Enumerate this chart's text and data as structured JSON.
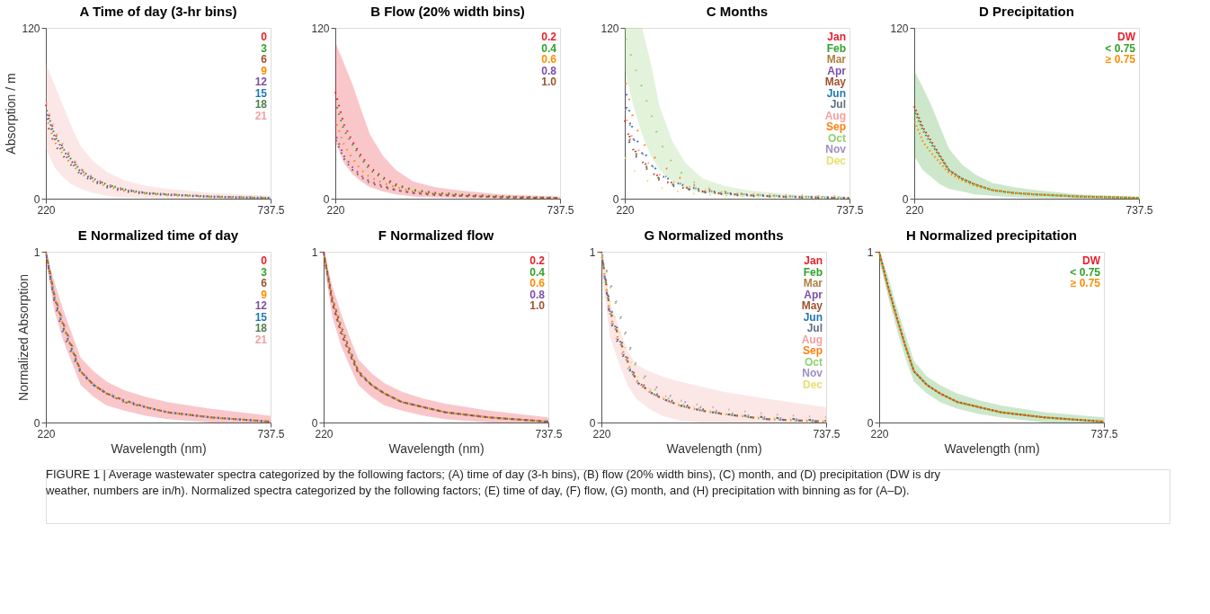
{
  "chart_data": [
    {
      "type": "line",
      "title": "A   Time of day (3-hr bins)",
      "ylabel": "Absorption / m",
      "x": [
        220,
        240,
        260,
        280,
        300,
        330,
        360,
        400,
        450,
        500,
        600,
        737.5
      ],
      "xlim": [
        220,
        737.5
      ],
      "xticks": [
        220,
        737.5
      ],
      "ylim": [
        0,
        120
      ],
      "yticks": [
        0,
        120
      ],
      "grid": false,
      "line_style": "dotted",
      "annotations": [
        "FIGURE 1 | Average wastewater spectra categorized by the following factors; (A) time of day (3-h bins), (B) flow (20% width bins), (C) month, and (D) precipitation (DW is dry weather, numbers are in/h). Normalized spectra categorized by the following factors; (E) time of day, (F) flow, (G) month, and (H) precipitation with binning as for (A–D)."
      ],
      "series": [
        {
          "name": "0",
          "color": "#e8202a",
          "values": [
            66,
            46,
            36,
            28,
            21,
            14,
            10,
            6.5,
            4,
            3,
            1.5,
            0.5
          ]
        },
        {
          "name": "3",
          "color": "#33a02c",
          "values": [
            63,
            44,
            35,
            27,
            20,
            14,
            10,
            6.5,
            4,
            3,
            1.5,
            0.5
          ]
        },
        {
          "name": "6",
          "color": "#a0522d",
          "values": [
            55,
            38,
            30,
            23,
            17,
            12,
            8,
            5,
            3.5,
            2.5,
            1.2,
            0.4
          ]
        },
        {
          "name": "9",
          "color": "#ff8c00",
          "values": [
            58,
            40,
            31,
            24,
            18,
            12,
            8.5,
            5.5,
            3.5,
            2.5,
            1.2,
            0.4
          ]
        },
        {
          "name": "12",
          "color": "#7b4fa6",
          "values": [
            60,
            42,
            32,
            25,
            18,
            13,
            9,
            6,
            4,
            3,
            1.5,
            0.5
          ]
        },
        {
          "name": "15",
          "color": "#1f78b4",
          "values": [
            62,
            44,
            34,
            26,
            19,
            13,
            9,
            6,
            4,
            3,
            1.5,
            0.5
          ]
        },
        {
          "name": "18",
          "color": "#4f7f4f",
          "values": [
            64,
            45,
            35,
            27,
            20,
            14,
            10,
            6.5,
            4,
            3,
            1.5,
            0.5
          ]
        },
        {
          "name": "21",
          "color": "#f4a0a0",
          "values": [
            68,
            48,
            38,
            29,
            21,
            15,
            10,
            7,
            4.5,
            3,
            1.5,
            0.5
          ],
          "lower": [
            35,
            22,
            15,
            10,
            7,
            4,
            2,
            1,
            0.5,
            0.3,
            0,
            0
          ],
          "upper": [
            95,
            80,
            65,
            50,
            37,
            26,
            19,
            13,
            9,
            7,
            4,
            2
          ]
        }
      ]
    },
    {
      "type": "line",
      "title": "B   Flow (20% width bins)",
      "x": [
        220,
        240,
        260,
        280,
        300,
        330,
        360,
        400,
        450,
        500,
        600,
        737.5
      ],
      "xlim": [
        220,
        737.5
      ],
      "xticks": [
        220,
        737.5
      ],
      "ylim": [
        0,
        120
      ],
      "yticks": [
        0,
        120
      ],
      "grid": false,
      "line_style": "dotted",
      "series": [
        {
          "name": "0.2",
          "color": "#e8202a",
          "values": [
            75,
            52,
            40,
            30,
            22,
            15,
            10,
            6,
            4,
            3,
            1.5,
            0.5
          ],
          "lower": [
            40,
            25,
            17,
            12,
            8,
            5,
            3,
            1.5,
            1,
            0.5,
            0,
            0
          ],
          "upper": [
            110,
            95,
            80,
            62,
            45,
            30,
            20,
            12,
            8,
            6,
            3,
            1.5
          ]
        },
        {
          "name": "0.4",
          "color": "#33a02c",
          "values": [
            68,
            48,
            38,
            28,
            20,
            14,
            9,
            6,
            4,
            3,
            1.5,
            0.5
          ]
        },
        {
          "name": "0.6",
          "color": "#ff8c00",
          "values": [
            55,
            38,
            28,
            20,
            15,
            11,
            8,
            5,
            3.5,
            2.5,
            1.2,
            0.4
          ]
        },
        {
          "name": "0.8",
          "color": "#7b4fa6",
          "values": [
            45,
            30,
            22,
            16,
            12,
            9,
            6,
            4,
            3,
            2,
            1,
            0.3
          ]
        },
        {
          "name": "1.0",
          "color": "#a0522d",
          "values": [
            42,
            28,
            20,
            15,
            11,
            8,
            6,
            4,
            2.5,
            2,
            1,
            0.3
          ]
        }
      ]
    },
    {
      "type": "line",
      "title": "C   Months",
      "x": [
        220,
        240,
        260,
        280,
        300,
        330,
        360,
        400,
        450,
        500,
        600,
        737.5
      ],
      "xlim": [
        220,
        737.5
      ],
      "xticks": [
        220,
        737.5
      ],
      "ylim": [
        0,
        120
      ],
      "yticks": [
        0,
        120
      ],
      "grid": false,
      "line_style": "dotted",
      "series": [
        {
          "name": "Jan",
          "color": "#e8202a",
          "values": [
            55,
            35,
            27,
            20,
            15,
            11,
            8,
            5,
            3.5,
            2.5,
            1.2,
            0.4
          ]
        },
        {
          "name": "Feb",
          "color": "#33a02c",
          "values": [
            52,
            34,
            26,
            19,
            14,
            10,
            7,
            5,
            3.5,
            2.5,
            1.2,
            0.4
          ]
        },
        {
          "name": "Mar",
          "color": "#b08040",
          "values": [
            50,
            33,
            25,
            19,
            14,
            10,
            7,
            5,
            3.5,
            2.5,
            1.2,
            0.4
          ]
        },
        {
          "name": "Apr",
          "color": "#7b4fa6",
          "values": [
            48,
            32,
            24,
            18,
            13,
            9,
            7,
            4.5,
            3,
            2,
            1,
            0.3
          ]
        },
        {
          "name": "May",
          "color": "#a0522d",
          "values": [
            53,
            34,
            26,
            19,
            14,
            10,
            7,
            5,
            3.5,
            2.5,
            1.2,
            0.4
          ]
        },
        {
          "name": "Jun",
          "color": "#1f78b4",
          "values": [
            80,
            45,
            35,
            25,
            18,
            12,
            9,
            6,
            4,
            3,
            1.5,
            0.5
          ]
        },
        {
          "name": "Jul",
          "color": "#607080",
          "values": [
            70,
            42,
            32,
            24,
            17,
            12,
            9,
            6,
            4,
            3,
            1.5,
            0.5
          ]
        },
        {
          "name": "Aug",
          "color": "#f4a0a0",
          "values": [
            60,
            40,
            30,
            23,
            17,
            12,
            9,
            6,
            4.5,
            3.5,
            2.5,
            1.5
          ]
        },
        {
          "name": "Sep",
          "color": "#ff7f0e",
          "values": [
            85,
            55,
            40,
            32,
            25,
            18,
            12,
            7,
            5,
            3,
            1.5,
            0.5
          ]
        },
        {
          "name": "Oct",
          "color": "#90d070",
          "values": [
            115,
            95,
            78,
            60,
            40,
            25,
            15,
            8,
            5,
            3,
            1.5,
            0.5
          ],
          "lower": [
            90,
            65,
            45,
            30,
            20,
            12,
            7,
            4,
            2,
            1,
            0.5,
            0
          ],
          "upper": [
            120,
            120,
            120,
            95,
            65,
            40,
            25,
            14,
            9,
            6,
            3,
            1.5
          ]
        },
        {
          "name": "Nov",
          "color": "#a090c0",
          "values": [
            65,
            42,
            32,
            24,
            18,
            13,
            9,
            6,
            4,
            3,
            1.5,
            0.5
          ]
        },
        {
          "name": "Dec",
          "color": "#e8e070",
          "values": [
            30,
            20,
            15,
            11,
            8,
            6,
            4,
            3,
            2,
            1.5,
            0.8,
            0.3
          ]
        }
      ]
    },
    {
      "type": "line",
      "title": "D   Precipitation",
      "x": [
        220,
        240,
        260,
        280,
        300,
        330,
        360,
        400,
        450,
        500,
        600,
        737.5
      ],
      "xlim": [
        220,
        737.5
      ],
      "xticks": [
        220,
        737.5
      ],
      "ylim": [
        0,
        120
      ],
      "yticks": [
        0,
        120
      ],
      "grid": false,
      "line_style": "dotted",
      "series": [
        {
          "name": "DW",
          "color": "#e8202a",
          "values": [
            65,
            50,
            40,
            30,
            20,
            14,
            10,
            6,
            4,
            3,
            1.5,
            0.5
          ]
        },
        {
          "name": "< 0.75",
          "color": "#33a02c",
          "values": [
            62,
            48,
            38,
            29,
            20,
            14,
            10,
            6,
            4,
            3,
            1.5,
            0.5
          ],
          "lower": [
            30,
            20,
            15,
            10,
            7,
            5,
            3,
            2,
            1,
            0.5,
            0,
            0
          ],
          "upper": [
            90,
            78,
            65,
            50,
            35,
            24,
            17,
            11,
            8,
            6,
            3,
            1.5
          ]
        },
        {
          "name": "≥ 0.75",
          "color": "#ff8c00",
          "values": [
            55,
            40,
            32,
            25,
            18,
            13,
            9,
            6,
            4,
            3,
            1.5,
            0.5
          ]
        }
      ]
    },
    {
      "type": "line",
      "title": "E   Normalized time of day",
      "xlabel": "Wavelength (nm)",
      "ylabel": "Normalized Absorption",
      "x": [
        220,
        240,
        260,
        280,
        300,
        330,
        360,
        400,
        450,
        500,
        600,
        737.5
      ],
      "xlim": [
        220,
        737.5
      ],
      "xticks": [
        220,
        737.5
      ],
      "ylim": [
        0,
        1
      ],
      "yticks": [
        0,
        1
      ],
      "grid": false,
      "line_style": "dotted",
      "series": [
        {
          "name": "0",
          "color": "#e8202a",
          "values": [
            1,
            0.74,
            0.58,
            0.45,
            0.3,
            0.22,
            0.17,
            0.13,
            0.09,
            0.06,
            0.03,
            0.005
          ],
          "lower": [
            0.95,
            0.65,
            0.48,
            0.35,
            0.22,
            0.15,
            0.1,
            0.07,
            0.04,
            0.02,
            0,
            0
          ],
          "upper": [
            1,
            0.82,
            0.66,
            0.52,
            0.38,
            0.3,
            0.24,
            0.19,
            0.15,
            0.12,
            0.08,
            0.04
          ]
        },
        {
          "name": "3",
          "color": "#33a02c",
          "values": [
            1,
            0.74,
            0.58,
            0.44,
            0.3,
            0.22,
            0.17,
            0.13,
            0.09,
            0.06,
            0.03,
            0.005
          ]
        },
        {
          "name": "6",
          "color": "#a0522d",
          "values": [
            1,
            0.73,
            0.57,
            0.43,
            0.3,
            0.22,
            0.17,
            0.12,
            0.09,
            0.06,
            0.03,
            0.005
          ]
        },
        {
          "name": "9",
          "color": "#ff8c00",
          "values": [
            1,
            0.73,
            0.57,
            0.43,
            0.3,
            0.22,
            0.17,
            0.12,
            0.09,
            0.06,
            0.03,
            0.005
          ]
        },
        {
          "name": "12",
          "color": "#7b4fa6",
          "values": [
            1,
            0.7,
            0.52,
            0.4,
            0.29,
            0.22,
            0.17,
            0.12,
            0.09,
            0.06,
            0.03,
            0.005
          ]
        },
        {
          "name": "15",
          "color": "#1f78b4",
          "values": [
            1,
            0.72,
            0.55,
            0.42,
            0.3,
            0.22,
            0.17,
            0.13,
            0.09,
            0.06,
            0.03,
            0.005
          ]
        },
        {
          "name": "18",
          "color": "#4f7f4f",
          "values": [
            1,
            0.73,
            0.56,
            0.43,
            0.3,
            0.22,
            0.17,
            0.13,
            0.09,
            0.06,
            0.03,
            0.005
          ]
        },
        {
          "name": "21",
          "color": "#f4a0a0",
          "values": [
            1,
            0.75,
            0.6,
            0.46,
            0.31,
            0.23,
            0.18,
            0.13,
            0.09,
            0.06,
            0.03,
            0.005
          ]
        }
      ]
    },
    {
      "type": "line",
      "title": "F   Normalized flow",
      "xlabel": "Wavelength (nm)",
      "x": [
        220,
        240,
        260,
        280,
        300,
        330,
        360,
        400,
        450,
        500,
        600,
        737.5
      ],
      "xlim": [
        220,
        737.5
      ],
      "xticks": [
        220,
        737.5
      ],
      "ylim": [
        0,
        1
      ],
      "yticks": [
        0,
        1
      ],
      "grid": false,
      "line_style": "dotted",
      "series": [
        {
          "name": "0.2",
          "color": "#e8202a",
          "values": [
            1,
            0.72,
            0.55,
            0.42,
            0.3,
            0.22,
            0.17,
            0.12,
            0.09,
            0.06,
            0.03,
            0.005
          ],
          "lower": [
            0.95,
            0.62,
            0.45,
            0.33,
            0.22,
            0.15,
            0.1,
            0.07,
            0.04,
            0.02,
            0,
            0
          ],
          "upper": [
            1,
            0.8,
            0.64,
            0.5,
            0.37,
            0.29,
            0.23,
            0.18,
            0.14,
            0.11,
            0.07,
            0.03
          ]
        },
        {
          "name": "0.4",
          "color": "#33a02c",
          "values": [
            1,
            0.73,
            0.57,
            0.43,
            0.3,
            0.22,
            0.17,
            0.12,
            0.09,
            0.06,
            0.03,
            0.005
          ]
        },
        {
          "name": "0.6",
          "color": "#ff8c00",
          "values": [
            1,
            0.72,
            0.56,
            0.42,
            0.3,
            0.22,
            0.17,
            0.12,
            0.09,
            0.06,
            0.03,
            0.005
          ]
        },
        {
          "name": "0.8",
          "color": "#7b4fa6",
          "values": [
            1,
            0.7,
            0.53,
            0.4,
            0.29,
            0.22,
            0.17,
            0.12,
            0.09,
            0.06,
            0.03,
            0.005
          ]
        },
        {
          "name": "1.0",
          "color": "#a0522d",
          "values": [
            1,
            0.7,
            0.52,
            0.4,
            0.29,
            0.22,
            0.17,
            0.12,
            0.09,
            0.06,
            0.03,
            0.005
          ]
        }
      ]
    },
    {
      "type": "line",
      "title": "G   Normalized months",
      "xlabel": "Wavelength (nm)",
      "x": [
        220,
        240,
        260,
        280,
        300,
        330,
        360,
        400,
        450,
        500,
        600,
        737.5
      ],
      "xlim": [
        220,
        737.5
      ],
      "xticks": [
        220,
        737.5
      ],
      "ylim": [
        0,
        1
      ],
      "yticks": [
        0,
        1
      ],
      "grid": false,
      "line_style": "dotted",
      "series": [
        {
          "name": "Jan",
          "color": "#e8202a",
          "values": [
            1,
            0.65,
            0.5,
            0.36,
            0.25,
            0.18,
            0.14,
            0.1,
            0.07,
            0.05,
            0.02,
            0.005
          ]
        },
        {
          "name": "Feb",
          "color": "#33a02c",
          "values": [
            1,
            0.66,
            0.5,
            0.36,
            0.25,
            0.18,
            0.14,
            0.1,
            0.07,
            0.05,
            0.02,
            0.005
          ]
        },
        {
          "name": "Mar",
          "color": "#b08040",
          "values": [
            1,
            0.64,
            0.49,
            0.35,
            0.24,
            0.18,
            0.14,
            0.1,
            0.07,
            0.05,
            0.02,
            0.005
          ]
        },
        {
          "name": "Apr",
          "color": "#7b4fa6",
          "values": [
            1,
            0.68,
            0.52,
            0.38,
            0.26,
            0.19,
            0.15,
            0.11,
            0.08,
            0.05,
            0.02,
            0.005
          ]
        },
        {
          "name": "May",
          "color": "#a0522d",
          "values": [
            1,
            0.65,
            0.5,
            0.36,
            0.25,
            0.18,
            0.14,
            0.1,
            0.07,
            0.05,
            0.02,
            0.005
          ]
        },
        {
          "name": "Jun",
          "color": "#1f78b4",
          "values": [
            1,
            0.6,
            0.45,
            0.33,
            0.24,
            0.18,
            0.14,
            0.1,
            0.07,
            0.05,
            0.03,
            0.01
          ]
        },
        {
          "name": "Jul",
          "color": "#607080",
          "values": [
            1,
            0.62,
            0.47,
            0.34,
            0.24,
            0.18,
            0.14,
            0.1,
            0.07,
            0.05,
            0.03,
            0.01
          ]
        },
        {
          "name": "Aug",
          "color": "#f4a0a0",
          "values": [
            1,
            0.6,
            0.45,
            0.32,
            0.24,
            0.19,
            0.16,
            0.13,
            0.1,
            0.08,
            0.05,
            0.03
          ],
          "lower": [
            0.9,
            0.5,
            0.35,
            0.22,
            0.14,
            0.08,
            0.04,
            0.01,
            0,
            0,
            0,
            0
          ],
          "upper": [
            1,
            0.7,
            0.56,
            0.42,
            0.34,
            0.3,
            0.27,
            0.24,
            0.21,
            0.18,
            0.14,
            0.09
          ]
        },
        {
          "name": "Sep",
          "color": "#ff7f0e",
          "values": [
            1,
            0.63,
            0.48,
            0.35,
            0.25,
            0.18,
            0.14,
            0.1,
            0.07,
            0.05,
            0.02,
            0.005
          ]
        },
        {
          "name": "Oct",
          "color": "#90d070",
          "values": [
            1,
            0.8,
            0.64,
            0.47,
            0.32,
            0.22,
            0.16,
            0.11,
            0.08,
            0.05,
            0.02,
            0.005
          ]
        },
        {
          "name": "Nov",
          "color": "#a090c0",
          "values": [
            1,
            0.82,
            0.66,
            0.49,
            0.34,
            0.24,
            0.18,
            0.13,
            0.09,
            0.06,
            0.03,
            0.01
          ]
        },
        {
          "name": "Dec",
          "color": "#e8e070",
          "values": [
            1,
            0.7,
            0.54,
            0.4,
            0.28,
            0.2,
            0.15,
            0.11,
            0.08,
            0.05,
            0.03,
            0.01
          ]
        }
      ]
    },
    {
      "type": "line",
      "title": "H   Normalized precipitation",
      "xlabel": "Wavelength (nm)",
      "x": [
        220,
        240,
        260,
        280,
        300,
        330,
        360,
        400,
        450,
        500,
        600,
        737.5
      ],
      "xlim": [
        220,
        737.5
      ],
      "xticks": [
        220,
        737.5
      ],
      "ylim": [
        0,
        1
      ],
      "yticks": [
        0,
        1
      ],
      "grid": false,
      "line_style": "dotted",
      "series": [
        {
          "name": "DW",
          "color": "#e8202a",
          "values": [
            1,
            0.8,
            0.62,
            0.45,
            0.3,
            0.22,
            0.17,
            0.12,
            0.09,
            0.06,
            0.03,
            0.005
          ]
        },
        {
          "name": "< 0.75",
          "color": "#33a02c",
          "values": [
            1,
            0.8,
            0.62,
            0.45,
            0.3,
            0.22,
            0.17,
            0.12,
            0.09,
            0.06,
            0.03,
            0.005
          ],
          "lower": [
            0.95,
            0.74,
            0.55,
            0.38,
            0.24,
            0.17,
            0.12,
            0.08,
            0.05,
            0.03,
            0,
            0
          ],
          "upper": [
            1,
            0.86,
            0.68,
            0.52,
            0.36,
            0.27,
            0.22,
            0.17,
            0.13,
            0.1,
            0.06,
            0.03
          ]
        },
        {
          "name": "≥ 0.75",
          "color": "#ff8c00",
          "values": [
            1,
            0.79,
            0.61,
            0.45,
            0.3,
            0.22,
            0.17,
            0.12,
            0.09,
            0.06,
            0.03,
            0.005
          ]
        }
      ]
    }
  ]
}
